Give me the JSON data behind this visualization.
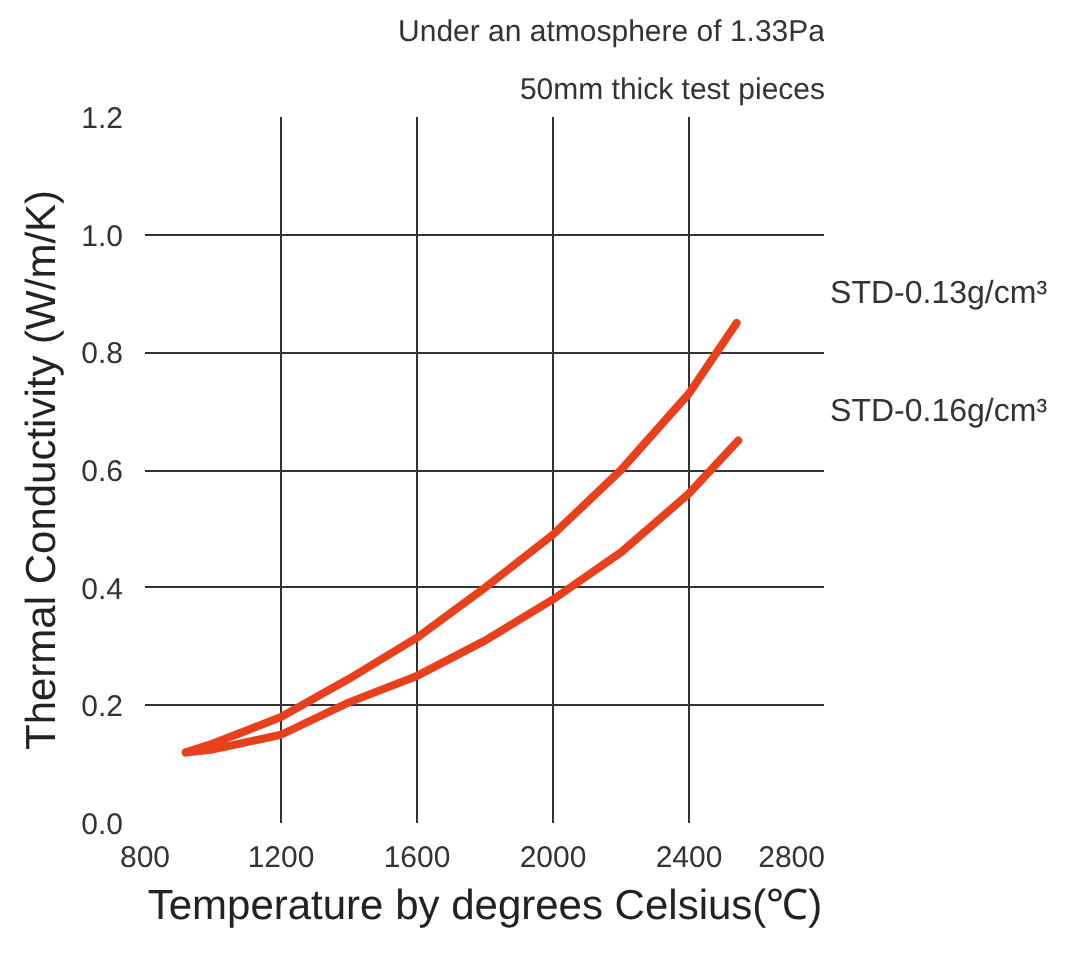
{
  "chart_data": {
    "type": "line",
    "xlabel": "Temperature by degrees Celsius(℃)",
    "ylabel": "Thermal Conductivity (W/m/K)",
    "annotations": [
      "Under an atmosphere of 1.33Pa",
      "50mm thick test pieces"
    ],
    "series": [
      {
        "name": "STD-0.13g/cm³",
        "color": "#e8401c",
        "x": [
          920,
          1000,
          1200,
          1400,
          1600,
          1800,
          2000,
          2200,
          2400,
          2540
        ],
        "values": [
          0.12,
          0.135,
          0.18,
          0.245,
          0.315,
          0.4,
          0.49,
          0.6,
          0.73,
          0.85
        ]
      },
      {
        "name": "STD-0.16g/cm³",
        "color": "#e8401c",
        "x": [
          920,
          1000,
          1200,
          1400,
          1600,
          1800,
          2000,
          2200,
          2400,
          2545
        ],
        "values": [
          0.12,
          0.125,
          0.15,
          0.205,
          0.25,
          0.31,
          0.38,
          0.46,
          0.56,
          0.65
        ]
      }
    ],
    "xlim": [
      800,
      2800
    ],
    "xticks": [
      800,
      1200,
      1600,
      2000,
      2400,
      2800
    ],
    "ylim": [
      0,
      1.2
    ],
    "yticks": [
      {
        "value": 0,
        "label": "0.0"
      },
      0.2,
      0.4,
      0.6,
      0.8,
      {
        "value": 1,
        "label": "1.0"
      },
      1.2
    ],
    "grid": true,
    "line_style": "solid",
    "marker": "none"
  }
}
